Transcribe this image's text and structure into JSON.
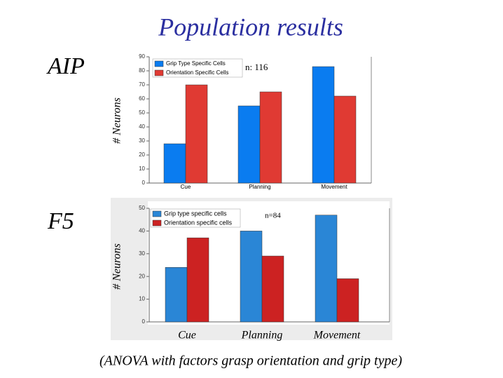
{
  "slide": {
    "title": "Population results",
    "footnote": "(ANOVA with factors grasp orientation and grip type)"
  },
  "chart_data": [
    {
      "type": "bar",
      "title": "AIP",
      "ylabel": "# Neurons",
      "annotation": "n: 116",
      "categories": [
        "Cue",
        "Planning",
        "Movement"
      ],
      "series": [
        {
          "name": "Grip Type Specific Cells",
          "color": "#0a7cf0",
          "values": [
            28,
            55,
            83
          ]
        },
        {
          "name": "Orientation Specific Cells",
          "color": "#e03a33",
          "values": [
            70,
            65,
            62
          ]
        }
      ],
      "ylim": [
        0,
        90
      ],
      "yticks": [
        0,
        10,
        20,
        30,
        40,
        50,
        60,
        70,
        80,
        90
      ],
      "legend": "upper left"
    },
    {
      "type": "bar",
      "title": "F5",
      "ylabel": "# Neurons",
      "annotation": "n=84",
      "categories": [
        "Cue",
        "Planning",
        "Movement"
      ],
      "series": [
        {
          "name": "Grip type specific cells",
          "color": "#2a86d6",
          "values": [
            24,
            40,
            47
          ]
        },
        {
          "name": "Orientation specific cells",
          "color": "#cc2222",
          "values": [
            37,
            29,
            19
          ]
        }
      ],
      "ylim": [
        0,
        50
      ],
      "yticks": [
        0,
        10,
        20,
        30,
        40,
        50
      ],
      "legend": "upper left"
    }
  ]
}
